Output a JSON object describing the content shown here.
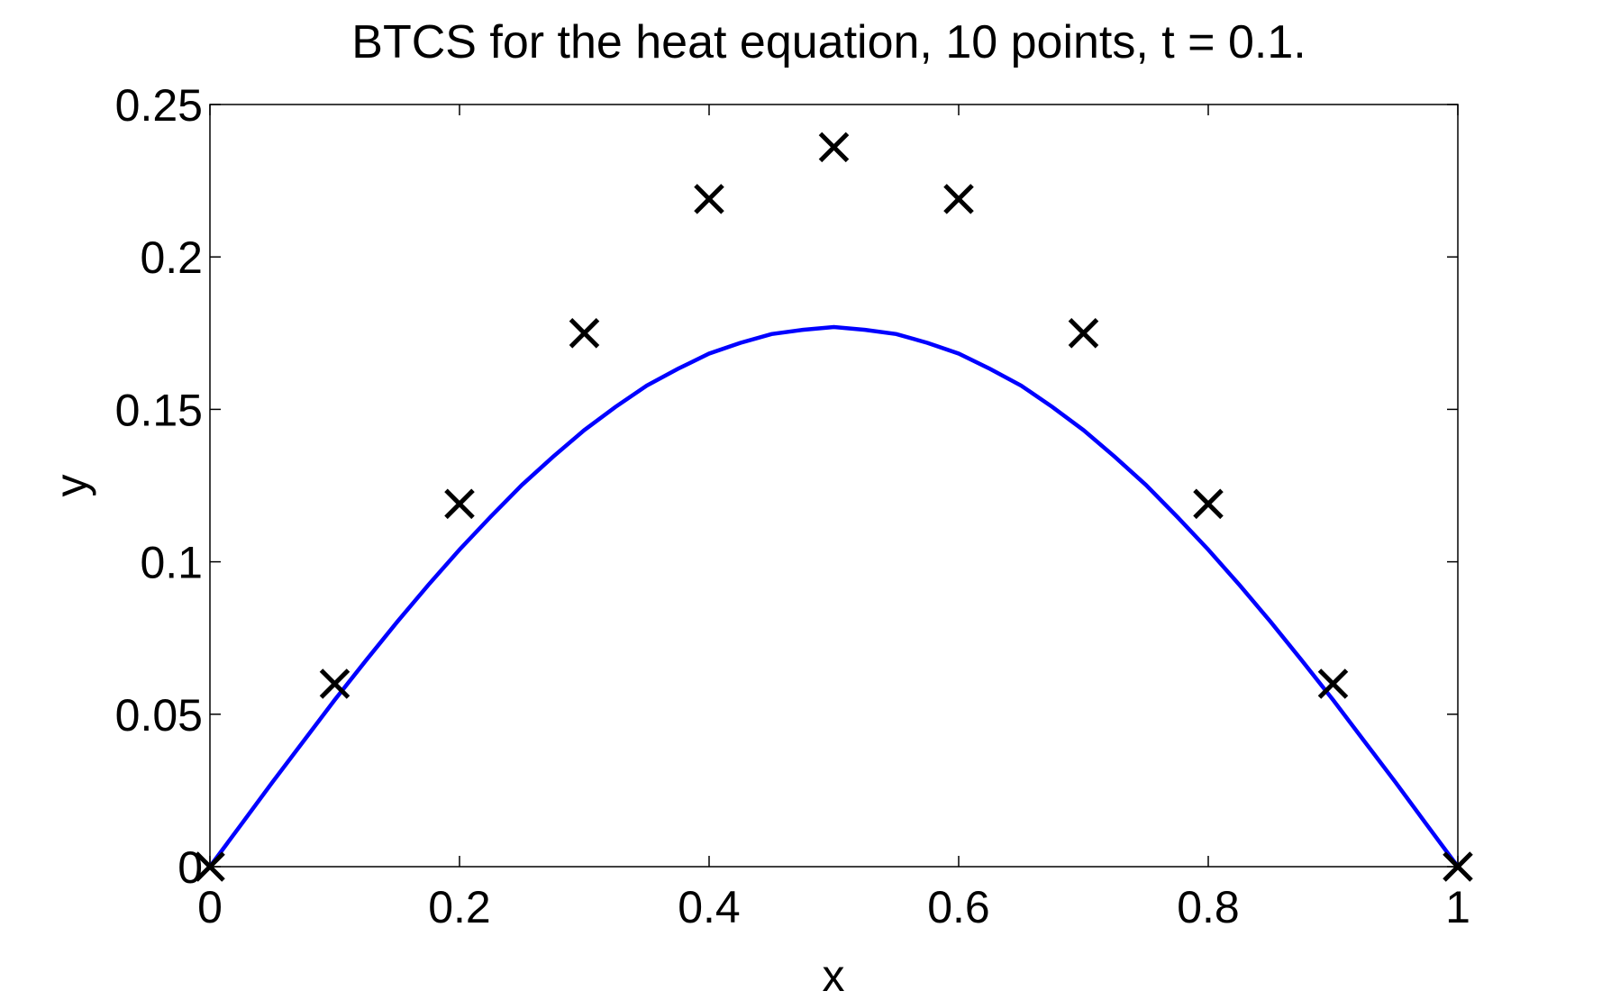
{
  "chart_data": {
    "type": "line",
    "title": "BTCS for the heat equation, 10 points, t = 0.1.",
    "xlabel": "x",
    "ylabel": "y",
    "xlim": [
      0,
      1
    ],
    "ylim": [
      0,
      0.25
    ],
    "grid": false,
    "x_ticks": [
      0,
      0.2,
      0.4,
      0.6,
      0.8,
      1
    ],
    "x_tick_labels": [
      "0",
      "0.2",
      "0.4",
      "0.6",
      "0.8",
      "1"
    ],
    "y_ticks": [
      0,
      0.05,
      0.1,
      0.15,
      0.2,
      0.25
    ],
    "y_tick_labels": [
      "0",
      "0.05",
      "0.1",
      "0.15",
      "0.2",
      "0.25"
    ],
    "series": [
      {
        "kind": "line",
        "color": "#0000ff",
        "x": [
          0,
          0.025,
          0.05,
          0.075,
          0.1,
          0.125,
          0.15,
          0.175,
          0.2,
          0.225,
          0.25,
          0.275,
          0.3,
          0.325,
          0.35,
          0.375,
          0.4,
          0.425,
          0.45,
          0.475,
          0.5,
          0.525,
          0.55,
          0.575,
          0.6,
          0.625,
          0.65,
          0.675,
          0.7,
          0.725,
          0.75,
          0.775,
          0.8,
          0.825,
          0.85,
          0.875,
          0.9,
          0.925,
          0.95,
          0.975,
          1
        ],
        "y": [
          0,
          0.0138,
          0.0277,
          0.0412,
          0.0547,
          0.0676,
          0.0803,
          0.0924,
          0.104,
          0.1148,
          0.1252,
          0.1345,
          0.1432,
          0.1508,
          0.1578,
          0.1633,
          0.1683,
          0.1718,
          0.1747,
          0.1761,
          0.177,
          0.1761,
          0.1747,
          0.1718,
          0.1683,
          0.1633,
          0.1578,
          0.1508,
          0.1432,
          0.1345,
          0.1252,
          0.1148,
          0.104,
          0.0924,
          0.0803,
          0.0676,
          0.0547,
          0.0412,
          0.0277,
          0.0138,
          0
        ]
      },
      {
        "kind": "scatter",
        "marker": "x",
        "color": "#000000",
        "x": [
          0,
          0.1,
          0.2,
          0.3,
          0.4,
          0.5,
          0.6,
          0.7,
          0.8,
          0.9,
          1
        ],
        "y": [
          0,
          0.06,
          0.119,
          0.175,
          0.219,
          0.236,
          0.219,
          0.175,
          0.119,
          0.06,
          0
        ]
      }
    ]
  }
}
